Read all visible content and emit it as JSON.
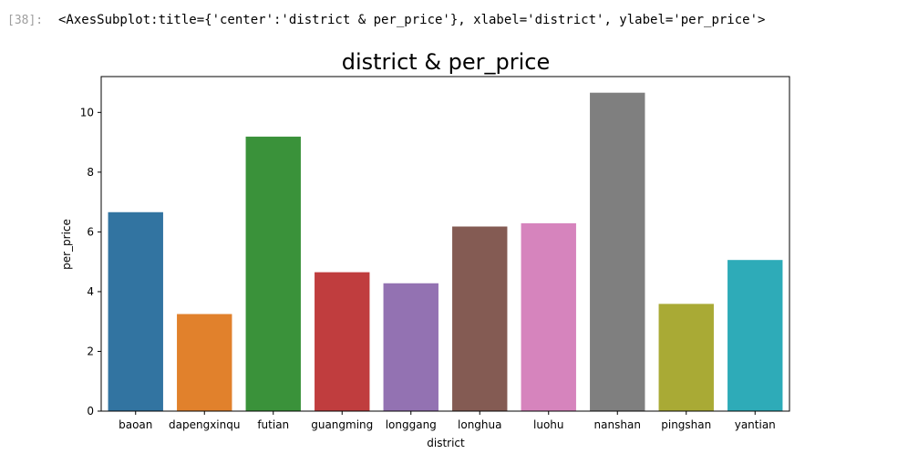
{
  "cell": {
    "prompt": "[38]:",
    "output_repr": "<AxesSubplot:title={'center':'district & per_price'}, xlabel='district', ylabel='per_price'>"
  },
  "chart_data": {
    "type": "bar",
    "title": "district & per_price",
    "xlabel": "district",
    "ylabel": "per_price",
    "categories": [
      "baoan",
      "dapengxinqu",
      "futian",
      "guangming",
      "longgang",
      "longhua",
      "luohu",
      "nanshan",
      "pingshan",
      "yantian"
    ],
    "values": [
      6.66,
      3.25,
      9.19,
      4.65,
      4.28,
      6.18,
      6.29,
      10.66,
      3.59,
      5.06
    ],
    "colors": [
      "#3274a1",
      "#e1812c",
      "#3a923a",
      "#c03d3e",
      "#9372b2",
      "#845b53",
      "#d684bd",
      "#7f7f7f",
      "#a9aa35",
      "#2eabb8"
    ],
    "ylim": [
      0,
      11.2
    ],
    "yticks": [
      0,
      2,
      4,
      6,
      8,
      10
    ],
    "grid": false,
    "legend": "none"
  }
}
